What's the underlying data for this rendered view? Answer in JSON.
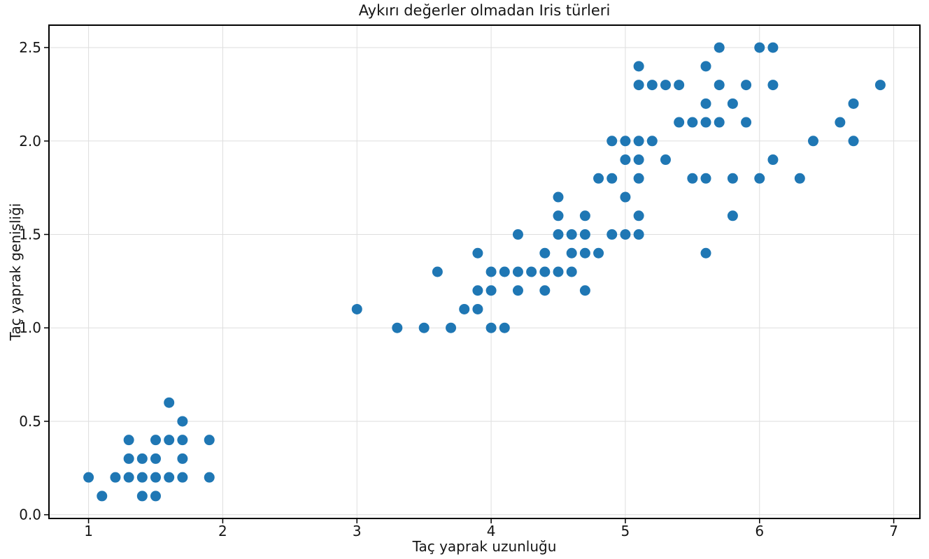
{
  "chart_data": {
    "type": "scatter",
    "title": "Aykırı değerler olmadan Iris türleri",
    "xlabel": "Taç yaprak uzunluğu",
    "ylabel": "Taç yaprak genişliği",
    "xlim": [
      0.705,
      7.195
    ],
    "ylim": [
      -0.02,
      2.62
    ],
    "xticks": [
      "1",
      "2",
      "3",
      "4",
      "5",
      "6",
      "7"
    ],
    "yticks": [
      "0.0",
      "0.5",
      "1.0",
      "1.5",
      "2.0",
      "2.5"
    ],
    "grid": true,
    "legend_position": "none",
    "marker_color": "#1f77b4",
    "grid_color": "#dedede",
    "spine_color": "#000000",
    "marker_radius": 7.5,
    "points": [
      [
        1.0,
        0.2
      ],
      [
        1.1,
        0.1
      ],
      [
        1.2,
        0.2
      ],
      [
        1.3,
        0.2
      ],
      [
        1.3,
        0.3
      ],
      [
        1.3,
        0.4
      ],
      [
        1.4,
        0.1
      ],
      [
        1.4,
        0.2
      ],
      [
        1.4,
        0.3
      ],
      [
        1.5,
        0.1
      ],
      [
        1.5,
        0.2
      ],
      [
        1.5,
        0.3
      ],
      [
        1.5,
        0.4
      ],
      [
        1.6,
        0.2
      ],
      [
        1.6,
        0.4
      ],
      [
        1.6,
        0.6
      ],
      [
        1.7,
        0.2
      ],
      [
        1.7,
        0.3
      ],
      [
        1.7,
        0.4
      ],
      [
        1.7,
        0.5
      ],
      [
        1.9,
        0.2
      ],
      [
        1.9,
        0.4
      ],
      [
        3.0,
        1.1
      ],
      [
        3.3,
        1.0
      ],
      [
        3.5,
        1.0
      ],
      [
        3.6,
        1.3
      ],
      [
        3.7,
        1.0
      ],
      [
        3.8,
        1.1
      ],
      [
        3.9,
        1.1
      ],
      [
        3.9,
        1.2
      ],
      [
        3.9,
        1.4
      ],
      [
        4.0,
        1.0
      ],
      [
        4.0,
        1.2
      ],
      [
        4.0,
        1.3
      ],
      [
        4.1,
        1.0
      ],
      [
        4.1,
        1.3
      ],
      [
        4.2,
        1.2
      ],
      [
        4.2,
        1.3
      ],
      [
        4.2,
        1.5
      ],
      [
        4.3,
        1.3
      ],
      [
        4.4,
        1.2
      ],
      [
        4.4,
        1.3
      ],
      [
        4.4,
        1.4
      ],
      [
        4.5,
        1.3
      ],
      [
        4.5,
        1.5
      ],
      [
        4.5,
        1.6
      ],
      [
        4.5,
        1.7
      ],
      [
        4.6,
        1.3
      ],
      [
        4.6,
        1.4
      ],
      [
        4.6,
        1.5
      ],
      [
        4.7,
        1.2
      ],
      [
        4.7,
        1.4
      ],
      [
        4.7,
        1.5
      ],
      [
        4.7,
        1.6
      ],
      [
        4.8,
        1.4
      ],
      [
        4.8,
        1.8
      ],
      [
        4.9,
        1.5
      ],
      [
        4.9,
        1.8
      ],
      [
        4.9,
        2.0
      ],
      [
        5.0,
        1.5
      ],
      [
        5.0,
        1.7
      ],
      [
        5.0,
        1.9
      ],
      [
        5.0,
        2.0
      ],
      [
        5.1,
        1.5
      ],
      [
        5.1,
        1.6
      ],
      [
        5.1,
        1.8
      ],
      [
        5.1,
        1.9
      ],
      [
        5.1,
        2.0
      ],
      [
        5.1,
        2.3
      ],
      [
        5.1,
        2.4
      ],
      [
        5.2,
        2.0
      ],
      [
        5.2,
        2.3
      ],
      [
        5.3,
        1.9
      ],
      [
        5.3,
        2.3
      ],
      [
        5.4,
        2.1
      ],
      [
        5.4,
        2.3
      ],
      [
        5.5,
        1.8
      ],
      [
        5.5,
        2.1
      ],
      [
        5.6,
        1.4
      ],
      [
        5.6,
        1.8
      ],
      [
        5.6,
        2.1
      ],
      [
        5.6,
        2.2
      ],
      [
        5.6,
        2.4
      ],
      [
        5.7,
        2.1
      ],
      [
        5.7,
        2.3
      ],
      [
        5.7,
        2.5
      ],
      [
        5.8,
        1.6
      ],
      [
        5.8,
        1.8
      ],
      [
        5.8,
        2.2
      ],
      [
        5.9,
        2.1
      ],
      [
        5.9,
        2.3
      ],
      [
        6.0,
        1.8
      ],
      [
        6.0,
        2.5
      ],
      [
        6.1,
        1.9
      ],
      [
        6.1,
        2.3
      ],
      [
        6.1,
        2.5
      ],
      [
        6.3,
        1.8
      ],
      [
        6.4,
        2.0
      ],
      [
        6.6,
        2.1
      ],
      [
        6.7,
        2.0
      ],
      [
        6.7,
        2.2
      ],
      [
        6.9,
        2.3
      ]
    ]
  }
}
